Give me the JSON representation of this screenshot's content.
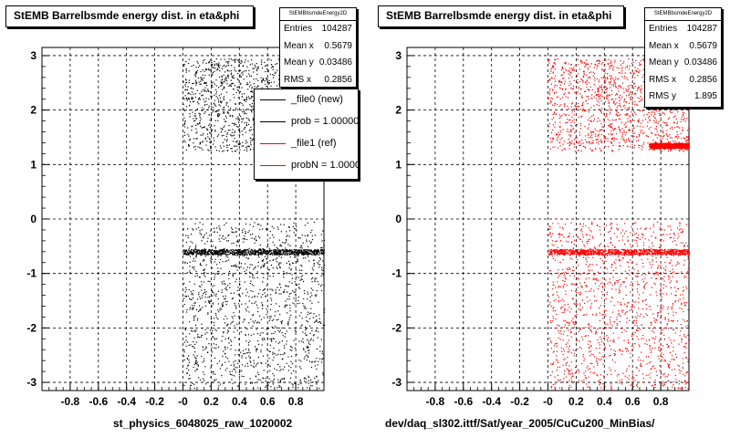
{
  "chart_data": [
    {
      "type": "scatter",
      "title": "StEMB Barrelbsmde energy dist. in eta&phi",
      "xlabel": "st_physics_6048025_raw_1020002",
      "ylabel": "",
      "xlim": [
        -1.0,
        1.0
      ],
      "ylim": [
        -3.15,
        3.15
      ],
      "x_ticks": [
        "-0.8",
        "-0.6",
        "-0.4",
        "-0.2",
        "-0",
        "0.2",
        "0.4",
        "0.6",
        "0.8"
      ],
      "y_ticks": [
        "3",
        "2",
        "1",
        "0",
        "-1",
        "-2",
        "-3"
      ],
      "grid": true,
      "marker_color": "#000000",
      "stats": {
        "header": "StEMBbsmdeEnergy2D",
        "rows": [
          {
            "label": "Entries",
            "value": "104287"
          },
          {
            "label": "Mean x",
            "value": "0.5679"
          },
          {
            "label": "Mean y",
            "value": "0.03486"
          },
          {
            "label": "RMS x",
            "value": "0.2856"
          }
        ]
      },
      "legend": [
        {
          "label": "_file0 (new)",
          "color": "#000000"
        },
        {
          "label": "prob = 1.000000",
          "color": "#000000"
        },
        {
          "label": "_file1 (ref)",
          "color": "#ff0000"
        },
        {
          "label": "probN = 1.000000",
          "color": "#ff0000"
        }
      ],
      "data_regions": [
        {
          "x": [
            0.0,
            1.0
          ],
          "y": [
            1.25,
            2.95
          ],
          "density": "medium"
        },
        {
          "x": [
            0.0,
            1.0
          ],
          "y": [
            -3.1,
            -0.05
          ],
          "density": "medium"
        },
        {
          "x": [
            0.0,
            1.0
          ],
          "y": [
            -0.65,
            -0.55
          ],
          "density": "high"
        }
      ]
    },
    {
      "type": "scatter",
      "title": "StEMB Barrelbsmde energy dist. in eta&phi",
      "xlabel": "dev/daq_sl302.ittf/Sat/year_2005/CuCu200_MinBias/",
      "ylabel": "",
      "xlim": [
        -1.0,
        1.0
      ],
      "ylim": [
        -3.15,
        3.15
      ],
      "x_ticks": [
        "-0.8",
        "-0.6",
        "-0.4",
        "-0.2",
        "-0",
        "0.2",
        "0.4",
        "0.6",
        "0.8"
      ],
      "y_ticks": [
        "3",
        "2",
        "1",
        "0",
        "-1",
        "-2",
        "-3"
      ],
      "grid": true,
      "marker_color": "#ff0000",
      "stats": {
        "header": "StEMBbsmdeEnergy2D",
        "rows": [
          {
            "label": "Entries",
            "value": "104287"
          },
          {
            "label": "Mean x",
            "value": "0.5679"
          },
          {
            "label": "Mean y",
            "value": "0.03486"
          },
          {
            "label": "RMS x",
            "value": "0.2856"
          },
          {
            "label": "RMS y",
            "value": "1.895"
          }
        ]
      },
      "data_regions": [
        {
          "x": [
            0.0,
            1.0
          ],
          "y": [
            1.25,
            2.95
          ],
          "density": "medium"
        },
        {
          "x": [
            0.0,
            1.0
          ],
          "y": [
            -3.1,
            -0.05
          ],
          "density": "medium"
        },
        {
          "x": [
            0.0,
            1.0
          ],
          "y": [
            -0.65,
            -0.55
          ],
          "density": "high"
        },
        {
          "x": [
            0.72,
            1.0
          ],
          "y": [
            1.3,
            1.4
          ],
          "density": "high"
        }
      ]
    }
  ]
}
